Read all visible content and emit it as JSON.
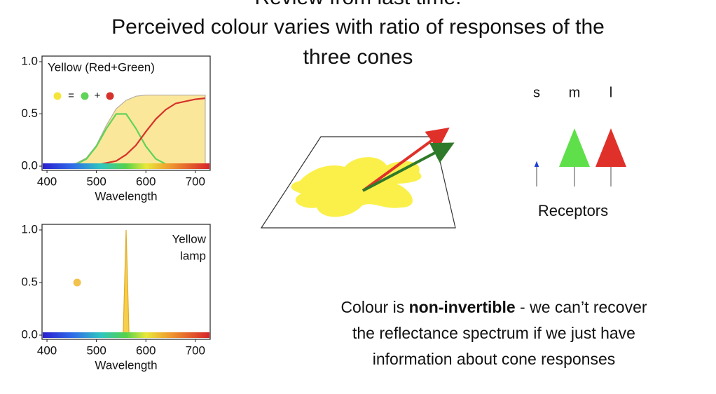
{
  "header": {
    "title": "Review from last time:",
    "subtitle_lines": [
      "Perceived colour varies with ratio of responses of the",
      "three cones"
    ]
  },
  "charts": [
    {
      "type": "line",
      "title": "Yellow (Red+Green)",
      "equation": [
        "=",
        "+"
      ],
      "legend_colors": [
        "#f4e53a",
        "#5fd35a",
        "#d6322b"
      ],
      "x": [
        400,
        420,
        440,
        460,
        480,
        500,
        520,
        540,
        560,
        580,
        600,
        620,
        640,
        660,
        680,
        700,
        720
      ],
      "series": [
        {
          "color": "#fbe79a",
          "stroke": "#b5ae9e",
          "fill": true,
          "values": [
            0,
            0,
            0.01,
            0.03,
            0.08,
            0.2,
            0.39,
            0.55,
            0.63,
            0.67,
            0.68,
            0.68,
            0.68,
            0.68,
            0.68,
            0.68,
            0.68
          ]
        },
        {
          "color": "#5fd35a",
          "fill": false,
          "values": [
            0,
            0,
            0,
            0.02,
            0.07,
            0.19,
            0.36,
            0.5,
            0.5,
            0.36,
            0.19,
            0.07,
            0.02,
            0,
            0,
            0,
            0
          ]
        },
        {
          "color": "#d6322b",
          "fill": false,
          "values": [
            0,
            0,
            0,
            0,
            0.01,
            0.01,
            0.03,
            0.05,
            0.11,
            0.2,
            0.33,
            0.45,
            0.54,
            0.6,
            0.62,
            0.64,
            0.65
          ]
        }
      ],
      "xlim": [
        390,
        730
      ],
      "ylim": [
        0,
        1
      ],
      "yticks": [
        {
          "value": 0,
          "label": "0.0"
        },
        {
          "value": 0.5,
          "label": "0.5"
        },
        {
          "value": 1,
          "label": "1.0"
        }
      ],
      "xticks": [
        400,
        500,
        600,
        700
      ],
      "xlabel": "Wavelength"
    },
    {
      "type": "line",
      "title_lines": [
        "Yellow",
        "lamp"
      ],
      "x": [
        554,
        560,
        566
      ],
      "series": [
        {
          "color": "#f7cf4a",
          "stroke": "#e0ac2a",
          "fill": true,
          "values": [
            0,
            1,
            0
          ]
        }
      ],
      "point": {
        "x": 461,
        "y": 0.5,
        "color": "#f2c14e"
      },
      "xlim": [
        390,
        730
      ],
      "ylim": [
        0,
        1
      ],
      "yticks": [
        {
          "value": 0,
          "label": "0.0"
        },
        {
          "value": 0.5,
          "label": "0.5"
        },
        {
          "value": 1,
          "label": "1.0"
        }
      ],
      "xticks": [
        400,
        500,
        600,
        700
      ],
      "xlabel": "Wavelength"
    }
  ],
  "receptors": {
    "labels": [
      "s",
      "m",
      "l"
    ],
    "responses": [
      0.15,
      1,
      1
    ],
    "colors": [
      "#1f3fd6",
      "#5fe04a",
      "#e0302a"
    ],
    "caption": "Receptors"
  },
  "note": {
    "lines": [
      [
        "Colour is ",
        "non-invertible",
        " - we can’t recover"
      ],
      [
        "the reflectance spectrum if we just have"
      ],
      [
        "information about cone responses"
      ]
    ]
  }
}
